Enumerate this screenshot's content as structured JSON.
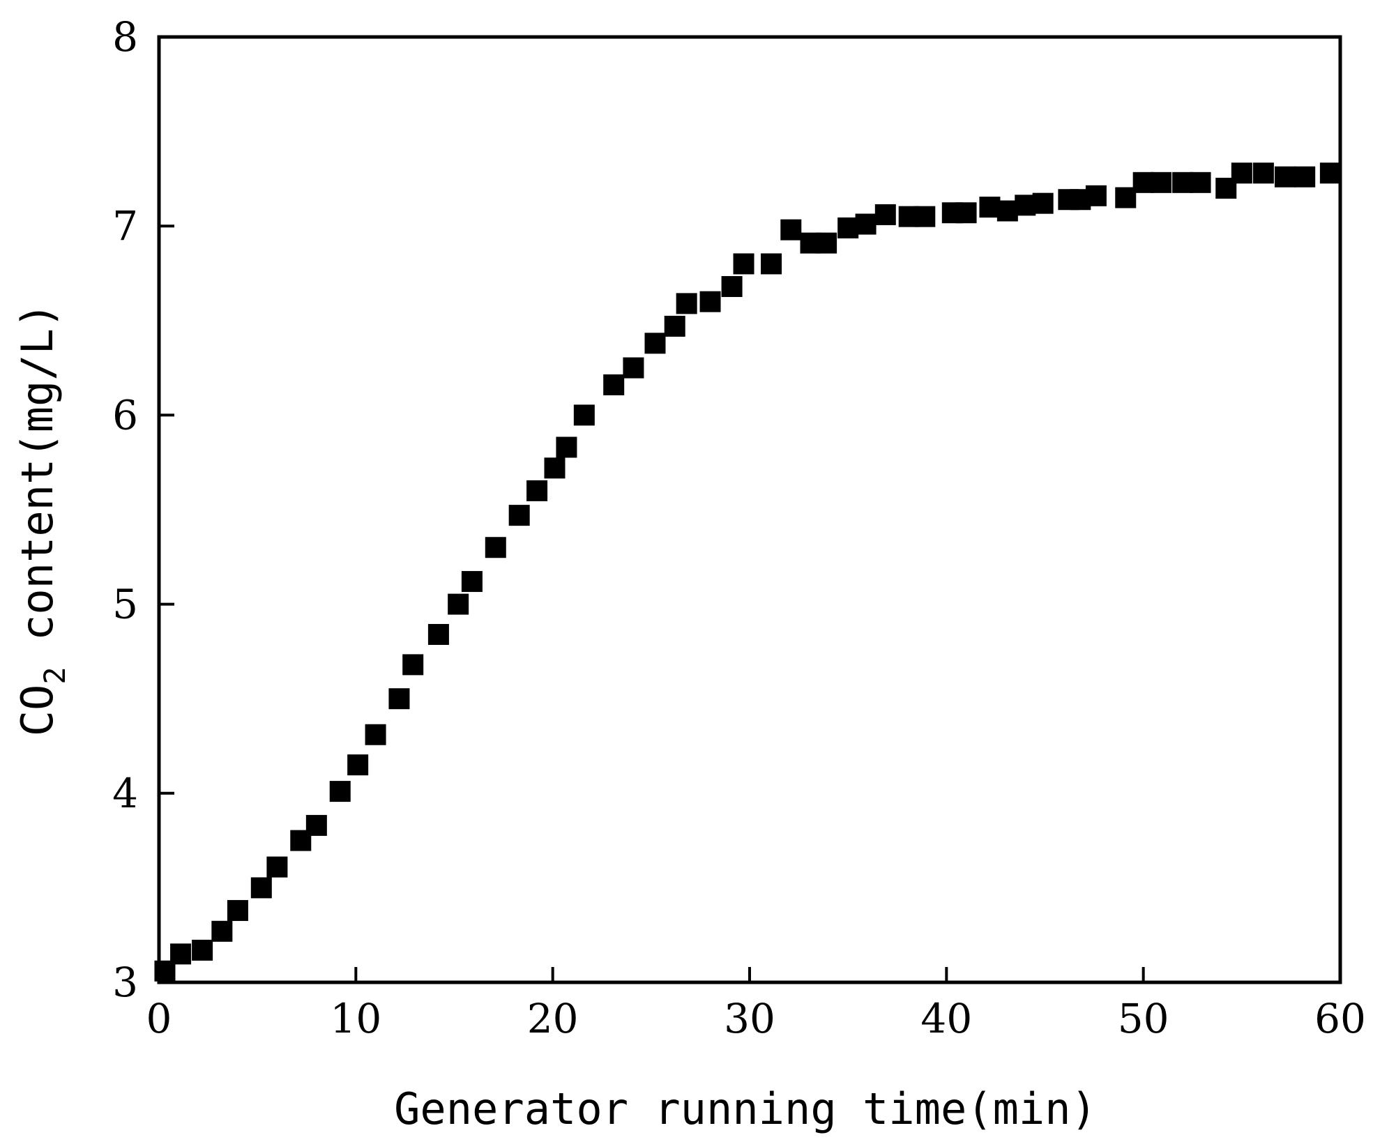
{
  "chart_data": {
    "type": "scatter",
    "xlabel": "Generator running time(min)",
    "ylabel_prefix": "CO",
    "ylabel_subscript": "2",
    "ylabel_suffix": " content(mg/L)",
    "xlim": [
      0,
      60
    ],
    "ylim": [
      3,
      8
    ],
    "xticks": [
      0,
      10,
      20,
      30,
      40,
      50,
      60
    ],
    "yticks": [
      3,
      4,
      5,
      6,
      7,
      8
    ],
    "grid": false,
    "marker": "square",
    "marker_color": "#000000",
    "points": [
      {
        "x": 0.3,
        "y": 3.06
      },
      {
        "x": 1.1,
        "y": 3.15
      },
      {
        "x": 2.2,
        "y": 3.17
      },
      {
        "x": 3.2,
        "y": 3.27
      },
      {
        "x": 4.0,
        "y": 3.38
      },
      {
        "x": 5.2,
        "y": 3.5
      },
      {
        "x": 6.0,
        "y": 3.61
      },
      {
        "x": 7.2,
        "y": 3.75
      },
      {
        "x": 8.0,
        "y": 3.83
      },
      {
        "x": 9.2,
        "y": 4.01
      },
      {
        "x": 10.1,
        "y": 4.15
      },
      {
        "x": 11.0,
        "y": 4.31
      },
      {
        "x": 12.2,
        "y": 4.5
      },
      {
        "x": 12.9,
        "y": 4.68
      },
      {
        "x": 14.2,
        "y": 4.84
      },
      {
        "x": 15.2,
        "y": 5.0
      },
      {
        "x": 15.9,
        "y": 5.12
      },
      {
        "x": 17.1,
        "y": 5.3
      },
      {
        "x": 18.3,
        "y": 5.47
      },
      {
        "x": 19.2,
        "y": 5.6
      },
      {
        "x": 20.1,
        "y": 5.72
      },
      {
        "x": 20.7,
        "y": 5.83
      },
      {
        "x": 21.6,
        "y": 6.0
      },
      {
        "x": 23.1,
        "y": 6.16
      },
      {
        "x": 24.1,
        "y": 6.25
      },
      {
        "x": 25.2,
        "y": 6.38
      },
      {
        "x": 26.2,
        "y": 6.47
      },
      {
        "x": 26.8,
        "y": 6.59
      },
      {
        "x": 28.0,
        "y": 6.6
      },
      {
        "x": 29.1,
        "y": 6.68
      },
      {
        "x": 29.7,
        "y": 6.8
      },
      {
        "x": 31.1,
        "y": 6.8
      },
      {
        "x": 32.1,
        "y": 6.98
      },
      {
        "x": 33.1,
        "y": 6.91
      },
      {
        "x": 33.9,
        "y": 6.91
      },
      {
        "x": 35.0,
        "y": 6.99
      },
      {
        "x": 35.9,
        "y": 7.01
      },
      {
        "x": 36.9,
        "y": 7.06
      },
      {
        "x": 38.1,
        "y": 7.05
      },
      {
        "x": 38.9,
        "y": 7.05
      },
      {
        "x": 40.3,
        "y": 7.07
      },
      {
        "x": 41.0,
        "y": 7.07
      },
      {
        "x": 42.2,
        "y": 7.1
      },
      {
        "x": 43.1,
        "y": 7.08
      },
      {
        "x": 44.0,
        "y": 7.11
      },
      {
        "x": 44.9,
        "y": 7.12
      },
      {
        "x": 46.2,
        "y": 7.14
      },
      {
        "x": 46.8,
        "y": 7.14
      },
      {
        "x": 47.6,
        "y": 7.16
      },
      {
        "x": 49.1,
        "y": 7.15
      },
      {
        "x": 50.0,
        "y": 7.23
      },
      {
        "x": 50.9,
        "y": 7.23
      },
      {
        "x": 52.0,
        "y": 7.23
      },
      {
        "x": 52.9,
        "y": 7.23
      },
      {
        "x": 54.2,
        "y": 7.2
      },
      {
        "x": 55.0,
        "y": 7.28
      },
      {
        "x": 56.1,
        "y": 7.28
      },
      {
        "x": 57.2,
        "y": 7.26
      },
      {
        "x": 58.2,
        "y": 7.26
      },
      {
        "x": 59.5,
        "y": 7.28
      }
    ]
  }
}
